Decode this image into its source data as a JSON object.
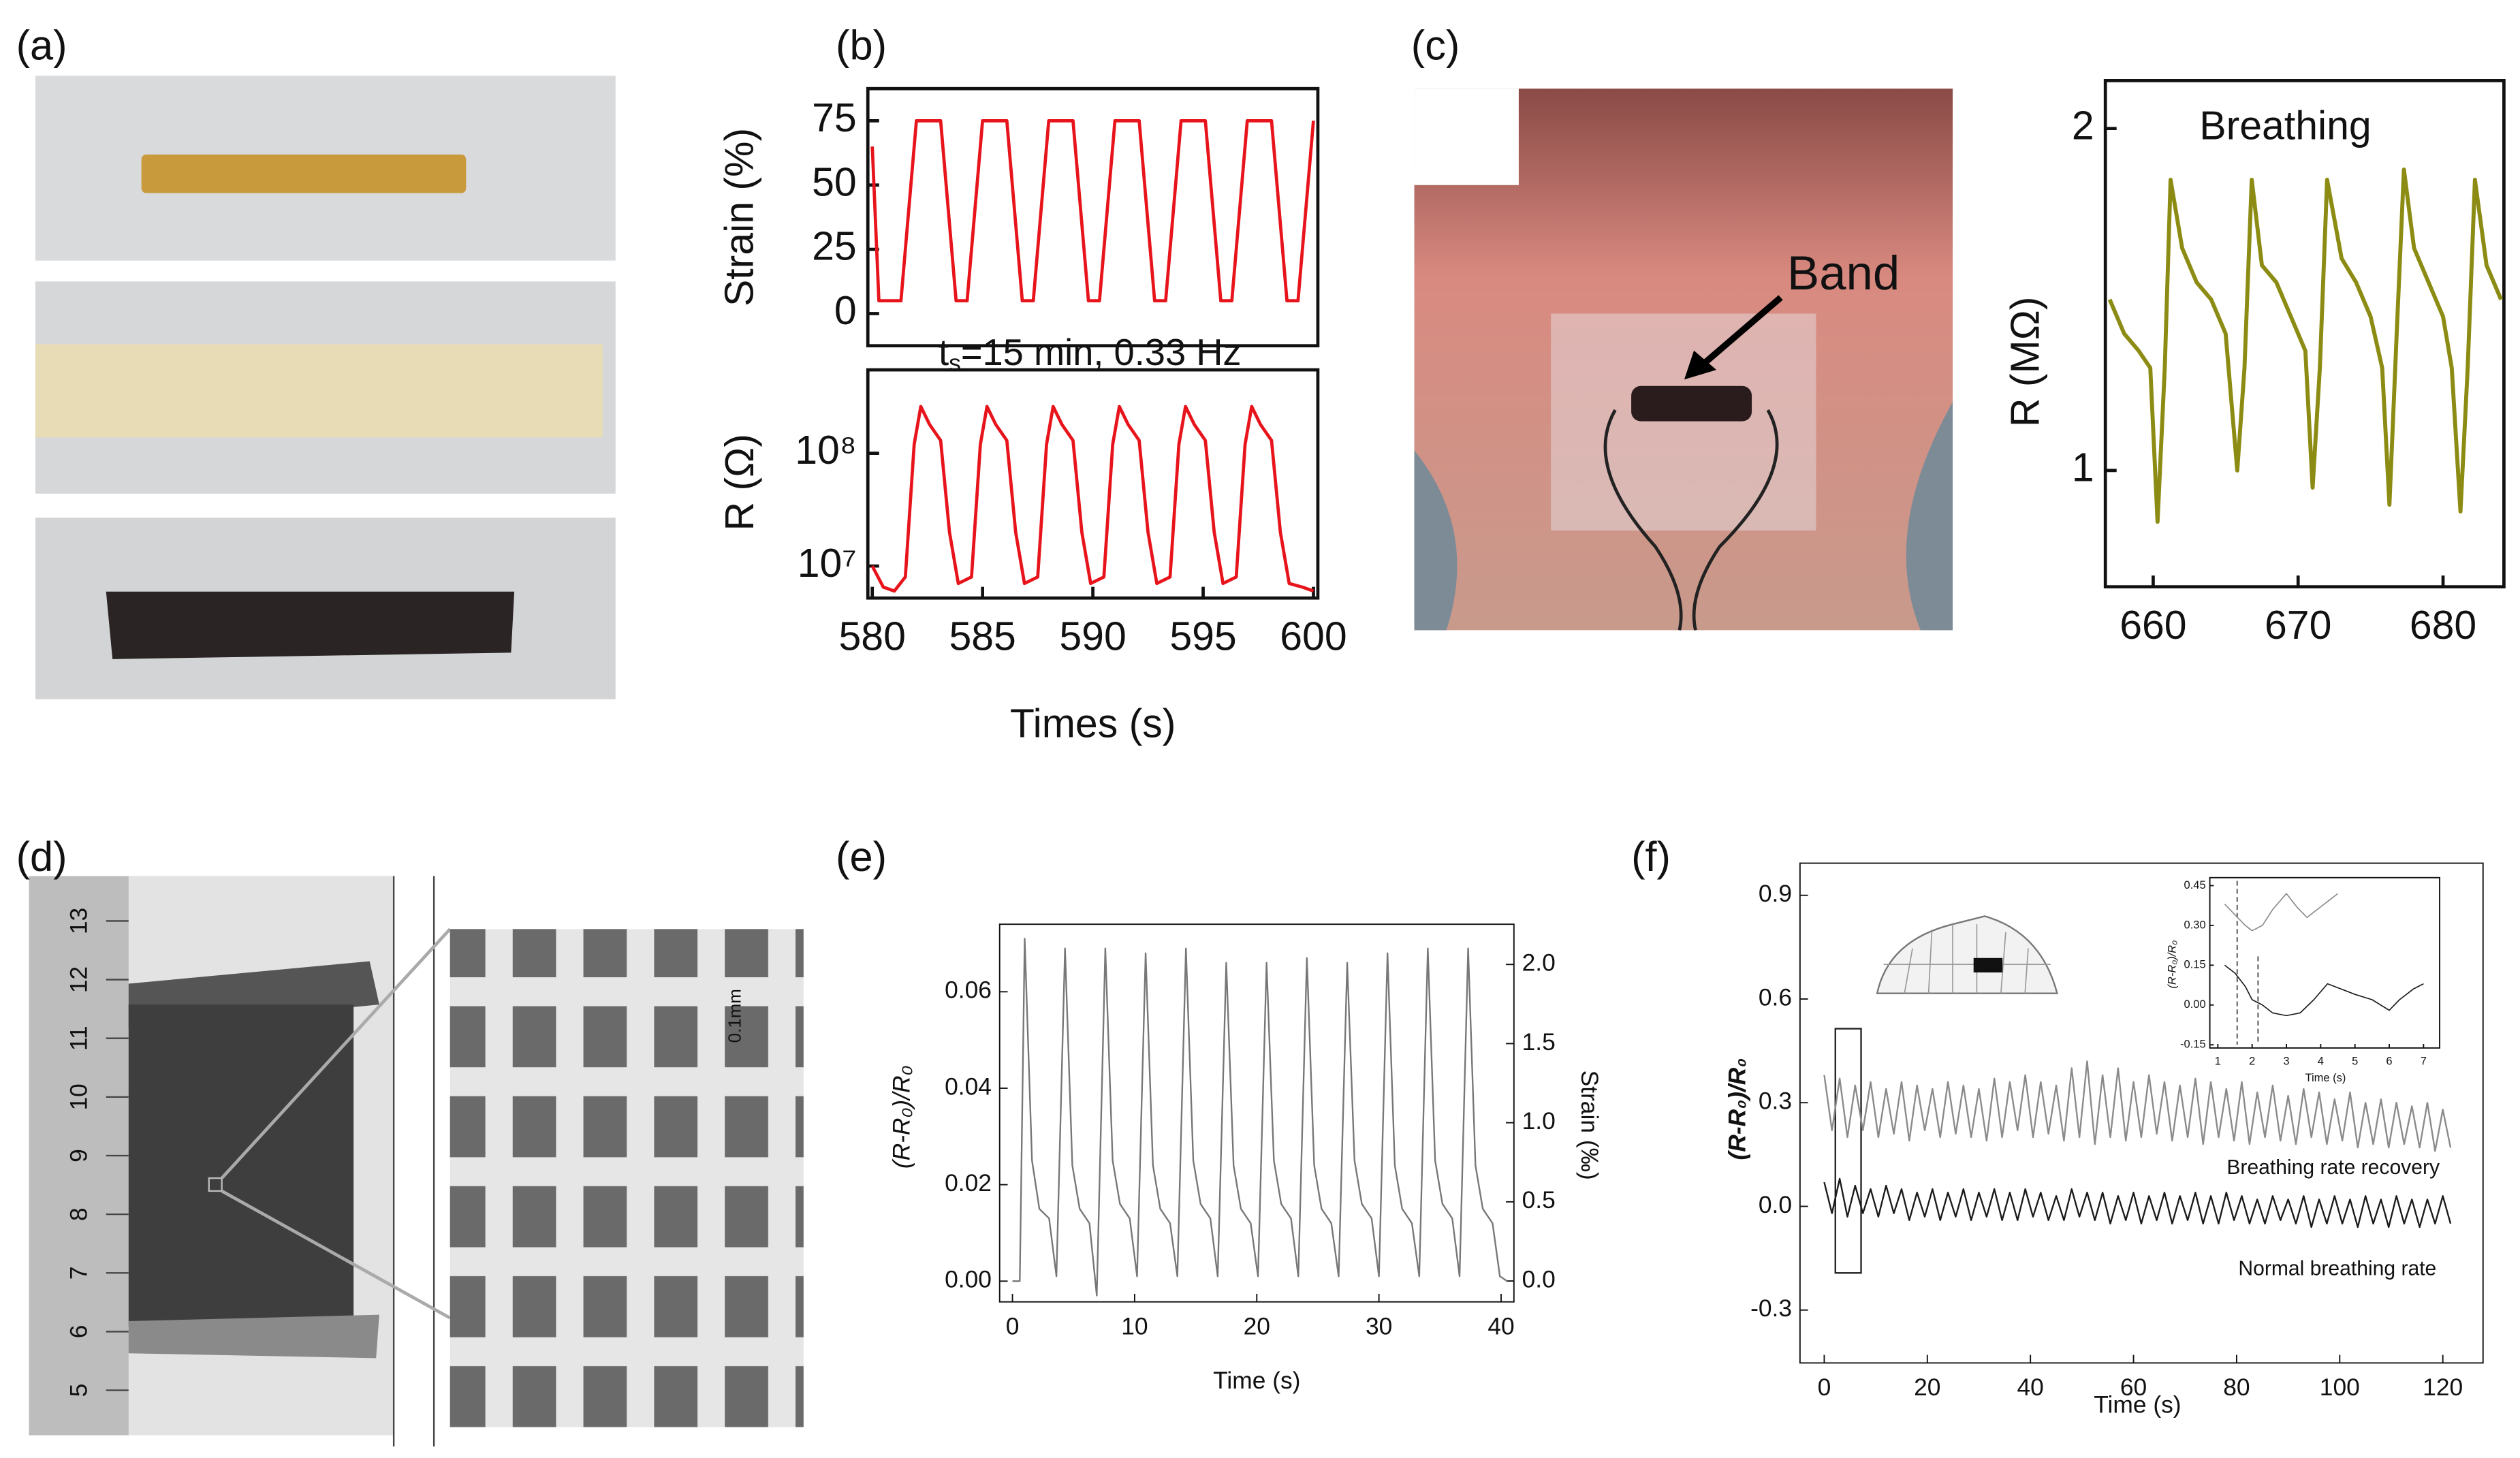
{
  "panel_labels": [
    "(a)",
    "(b)",
    "(c)",
    "(d)",
    "(e)",
    "(f)"
  ],
  "photo_text": {
    "band": "Band",
    "ruler": [
      13,
      12,
      11,
      10,
      9,
      8,
      7,
      6,
      5
    ],
    "scale": "0.1mm"
  },
  "chart_data": [
    {
      "type": "line",
      "ylabel": "Strain (%)",
      "annotation": {
        "main": "t",
        "sub": "s",
        "rest": "=15 min, 0.33 Hz"
      },
      "x": [
        580,
        580.3,
        581.3,
        582,
        583.1,
        583.8,
        584.3,
        585,
        586.1,
        586.8,
        587.3,
        588,
        589.1,
        589.8,
        590.3,
        591,
        592.1,
        592.8,
        593.3,
        594,
        595.1,
        595.8,
        596.3,
        597,
        598.1,
        598.8,
        599.3,
        600
      ],
      "series": [
        {
          "color": "#e8141c",
          "values": [
            65,
            5,
            5,
            75,
            75,
            5,
            5,
            75,
            75,
            5,
            5,
            75,
            75,
            5,
            5,
            75,
            75,
            5,
            5,
            75,
            75,
            5,
            5,
            75,
            75,
            5,
            5,
            75
          ]
        }
      ],
      "xlim": [
        579.8,
        600.2
      ],
      "ylim": [
        -12.5,
        87.5
      ],
      "yticks": [
        0,
        25,
        50,
        75
      ]
    },
    {
      "type": "line",
      "ylabel": "R (Ω)",
      "xlabel": "Times (s)",
      "log_scale": true,
      "x": [
        580,
        580.5,
        581,
        581.5,
        581.9,
        582.2,
        582.6,
        583.1,
        583.5,
        583.9,
        584.5,
        584.9,
        585.2,
        585.6,
        586.1,
        586.5,
        586.9,
        587.5,
        587.9,
        588.2,
        588.6,
        589.1,
        589.5,
        589.9,
        590.5,
        590.9,
        591.2,
        591.6,
        592.1,
        592.5,
        592.9,
        593.5,
        593.9,
        594.2,
        594.6,
        595.1,
        595.5,
        595.9,
        596.5,
        596.9,
        597.2,
        597.6,
        598.1,
        598.5,
        598.9,
        599.5,
        600
      ],
      "series": [
        {
          "color": "#e8141c",
          "values": [
            10000000,
            6500000,
            6000000,
            8000000,
            120000000,
            260000000,
            180000000,
            130000000,
            20000000,
            7000000,
            8000000,
            120000000,
            260000000,
            180000000,
            130000000,
            20000000,
            7000000,
            8000000,
            120000000,
            260000000,
            180000000,
            130000000,
            20000000,
            7000000,
            8000000,
            120000000,
            260000000,
            180000000,
            130000000,
            20000000,
            7000000,
            8000000,
            120000000,
            260000000,
            180000000,
            130000000,
            20000000,
            7000000,
            8000000,
            120000000,
            260000000,
            180000000,
            130000000,
            20000000,
            7000000,
            6500000,
            6000000
          ]
        }
      ],
      "xlim": [
        579.8,
        600.2
      ],
      "ylim": [
        5200000,
        550000000
      ],
      "xticks": [
        580,
        585,
        590,
        595,
        600
      ],
      "yticks": [
        {
          "value": 10000000,
          "label": "10⁷"
        },
        {
          "value": 100000000,
          "label": "10⁸"
        }
      ]
    },
    {
      "type": "line",
      "title": "Breathing",
      "ylabel": "R (MΩ)",
      "x": [
        657,
        658,
        659,
        659.8,
        660.3,
        660.8,
        661.2,
        662,
        663,
        664,
        665,
        665.8,
        666.3,
        666.8,
        667.5,
        668.5,
        669.5,
        670.5,
        671,
        671.5,
        672,
        673,
        674,
        675,
        675.8,
        676.3,
        676.8,
        677.3,
        678,
        679,
        680,
        680.6,
        681.2,
        681.7,
        682.2,
        683,
        684
      ],
      "series": [
        {
          "color": "#8c8c14",
          "values": [
            1.5,
            1.4,
            1.35,
            1.3,
            0.85,
            1.3,
            1.85,
            1.65,
            1.55,
            1.5,
            1.4,
            1.0,
            1.3,
            1.85,
            1.6,
            1.55,
            1.45,
            1.35,
            0.95,
            1.3,
            1.85,
            1.62,
            1.55,
            1.45,
            1.3,
            0.9,
            1.4,
            1.88,
            1.65,
            1.55,
            1.45,
            1.3,
            0.88,
            1.3,
            1.85,
            1.6,
            1.5
          ]
        }
      ],
      "xlim": [
        656.7,
        684.2
      ],
      "ylim": [
        0.66,
        2.14
      ],
      "xticks": [
        660,
        670,
        680
      ],
      "yticks": [
        1,
        2
      ]
    },
    {
      "type": "line",
      "ylabel": "(R-R₀)/R₀",
      "y2label": "Strain (‰)",
      "xlabel": "Time (s)",
      "x": [
        0,
        0.6,
        1,
        1.6,
        2.2,
        3,
        3.6,
        4.3,
        4.9,
        5.5,
        6.3,
        6.9,
        7.6,
        8.2,
        8.8,
        9.6,
        10.2,
        10.9,
        11.5,
        12.1,
        12.9,
        13.5,
        14.2,
        14.8,
        15.4,
        16.2,
        16.8,
        17.5,
        18.1,
        18.7,
        19.5,
        20.1,
        20.8,
        21.4,
        22,
        22.8,
        23.4,
        24.1,
        24.7,
        25.3,
        26.1,
        26.7,
        27.4,
        28,
        28.6,
        29.4,
        30,
        30.7,
        31.3,
        31.9,
        32.7,
        33.3,
        34,
        34.6,
        35.2,
        36,
        36.6,
        37.3,
        37.9,
        38.5,
        39.3,
        39.9,
        40.5
      ],
      "series": [
        {
          "color": "#777777",
          "values": [
            0,
            0,
            0.071,
            0.025,
            0.015,
            0.013,
            0.001,
            0.069,
            0.024,
            0.015,
            0.012,
            -0.003,
            0.069,
            0.025,
            0.016,
            0.013,
            0.001,
            0.068,
            0.024,
            0.015,
            0.012,
            0.001,
            0.069,
            0.025,
            0.016,
            0.013,
            0.001,
            0.066,
            0.024,
            0.015,
            0.012,
            0.001,
            0.066,
            0.025,
            0.016,
            0.013,
            0.001,
            0.067,
            0.024,
            0.015,
            0.012,
            0.001,
            0.066,
            0.025,
            0.016,
            0.013,
            0.001,
            0.068,
            0.024,
            0.015,
            0.012,
            0.001,
            0.069,
            0.025,
            0.016,
            0.013,
            0.001,
            0.069,
            0.024,
            0.015,
            0.012,
            0.001,
            0
          ]
        }
      ],
      "xlim": [
        -1.05,
        41.05
      ],
      "ylim": [
        -0.0043,
        0.074
      ],
      "y2lim": [
        -0.132,
        2.254
      ],
      "xticks": [
        0,
        10,
        20,
        30,
        40
      ],
      "yticks": [
        {
          "value": 0,
          "label": "0.00"
        },
        {
          "value": 0.02,
          "label": "0.02"
        },
        {
          "value": 0.04,
          "label": "0.04"
        },
        {
          "value": 0.06,
          "label": "0.06"
        }
      ],
      "y2ticks": [
        {
          "value": 0,
          "label": "0.0"
        },
        {
          "value": 0.5,
          "label": "0.5"
        },
        {
          "value": 1,
          "label": "1.0"
        },
        {
          "value": 1.5,
          "label": "1.5"
        },
        {
          "value": 2,
          "label": "2.0"
        }
      ]
    },
    {
      "type": "line",
      "ylabel": "(R-R₀)/R₀",
      "xlabel": "Time (s)",
      "x": [
        0,
        1.5,
        3,
        4.5,
        6,
        7.5,
        9,
        10.5,
        12,
        13.5,
        15,
        16.5,
        18,
        19.5,
        21,
        22.5,
        24,
        25.5,
        27,
        28.5,
        30,
        31.5,
        33,
        34.5,
        36,
        37.5,
        39,
        40.5,
        42,
        43.5,
        45,
        46.5,
        48,
        49.5,
        51,
        52.5,
        54,
        55.5,
        57,
        58.5,
        60,
        61.5,
        63,
        64.5,
        66,
        67.5,
        69,
        70.5,
        72,
        73.5,
        75,
        76.5,
        78,
        79.5,
        81,
        82.5,
        84,
        85.5,
        87,
        88.5,
        90,
        91.5,
        93,
        94.5,
        96,
        97.5,
        99,
        100.5,
        102,
        103.5,
        105,
        106.5,
        108,
        109.5,
        111,
        112.5,
        114,
        115.5,
        117,
        118.5,
        120,
        121.5
      ],
      "series": [
        {
          "name": "Breathing rate recovery",
          "color": "#8a8a8a",
          "values": [
            0.38,
            0.22,
            0.37,
            0.2,
            0.35,
            0.22,
            0.36,
            0.2,
            0.34,
            0.21,
            0.36,
            0.19,
            0.35,
            0.22,
            0.34,
            0.2,
            0.36,
            0.21,
            0.35,
            0.2,
            0.34,
            0.19,
            0.37,
            0.2,
            0.36,
            0.22,
            0.38,
            0.2,
            0.36,
            0.21,
            0.35,
            0.19,
            0.4,
            0.2,
            0.42,
            0.18,
            0.38,
            0.2,
            0.4,
            0.19,
            0.36,
            0.2,
            0.38,
            0.21,
            0.36,
            0.19,
            0.35,
            0.2,
            0.37,
            0.18,
            0.36,
            0.2,
            0.34,
            0.19,
            0.36,
            0.18,
            0.33,
            0.2,
            0.35,
            0.19,
            0.32,
            0.18,
            0.34,
            0.2,
            0.33,
            0.18,
            0.31,
            0.19,
            0.33,
            0.17,
            0.3,
            0.18,
            0.31,
            0.17,
            0.3,
            0.18,
            0.29,
            0.17,
            0.3,
            0.16,
            0.28,
            0.17
          ]
        },
        {
          "name": "Normal breathing rate",
          "color": "#1a1a1a",
          "values": [
            0.07,
            -0.02,
            0.08,
            -0.03,
            0.06,
            -0.02,
            0.05,
            -0.03,
            0.06,
            -0.02,
            0.05,
            -0.04,
            0.04,
            -0.03,
            0.05,
            -0.04,
            0.04,
            -0.03,
            0.05,
            -0.04,
            0.04,
            -0.03,
            0.05,
            -0.04,
            0.04,
            -0.04,
            0.05,
            -0.03,
            0.04,
            -0.04,
            0.03,
            -0.04,
            0.05,
            -0.03,
            0.04,
            -0.04,
            0.04,
            -0.05,
            0.03,
            -0.04,
            0.04,
            -0.05,
            0.03,
            -0.04,
            0.04,
            -0.05,
            0.03,
            -0.04,
            0.04,
            -0.05,
            0.03,
            -0.05,
            0.04,
            -0.04,
            0.03,
            -0.05,
            0.02,
            -0.05,
            0.03,
            -0.04,
            0.02,
            -0.05,
            0.03,
            -0.06,
            0.02,
            -0.05,
            0.03,
            -0.05,
            0.02,
            -0.06,
            0.03,
            -0.05,
            0.02,
            -0.06,
            0.03,
            -0.05,
            0.02,
            -0.06,
            0.02,
            -0.05,
            0.03,
            -0.05
          ]
        }
      ],
      "xlim": [
        -4.7,
        127.8
      ],
      "ylim": [
        -0.453,
        0.993
      ],
      "xticks": [
        0,
        20,
        40,
        60,
        80,
        100,
        120
      ],
      "yticks": [
        {
          "value": -0.3,
          "label": "-0.3"
        },
        {
          "value": 0,
          "label": "0.0"
        },
        {
          "value": 0.3,
          "label": "0.3"
        },
        {
          "value": 0.6,
          "label": "0.6"
        },
        {
          "value": 0.9,
          "label": "0.9"
        }
      ]
    },
    {
      "type": "line",
      "ylabel": "(R-R₀)/R₀",
      "xlabel": "Time (s)",
      "series": [
        {
          "color": "#8a8a8a",
          "x": [
            1.2,
            1.5,
            1.8,
            2.0,
            2.3,
            2.6,
            3.0,
            3.3,
            3.6,
            4.0,
            4.3,
            4.5
          ],
          "values": [
            0.38,
            0.34,
            0.3,
            0.28,
            0.3,
            0.36,
            0.42,
            0.37,
            0.33,
            0.37,
            0.4,
            0.42
          ]
        },
        {
          "color": "#1a1a1a",
          "x": [
            1.2,
            1.5,
            1.8,
            2.0,
            2.3,
            2.6,
            3.0,
            3.4,
            3.8,
            4.2,
            4.6,
            5.0,
            5.5,
            6.0,
            6.3,
            6.7,
            7.0
          ],
          "values": [
            0.15,
            0.12,
            0.07,
            0.02,
            0.0,
            -0.03,
            -0.04,
            -0.03,
            0.02,
            0.08,
            0.06,
            0.04,
            0.02,
            -0.02,
            0.02,
            0.06,
            0.08
          ]
        }
      ],
      "xlim": [
        0.766,
        7.47
      ],
      "ylim": [
        -0.162,
        0.48
      ],
      "xticks": [
        1,
        2,
        3,
        4,
        5,
        6,
        7
      ],
      "yticks": [
        {
          "value": -0.15,
          "label": "-0.15"
        },
        {
          "value": 0,
          "label": "0.00"
        },
        {
          "value": 0.15,
          "label": "0.15"
        },
        {
          "value": 0.3,
          "label": "0.30"
        },
        {
          "value": 0.45,
          "label": "0.45"
        }
      ]
    }
  ]
}
